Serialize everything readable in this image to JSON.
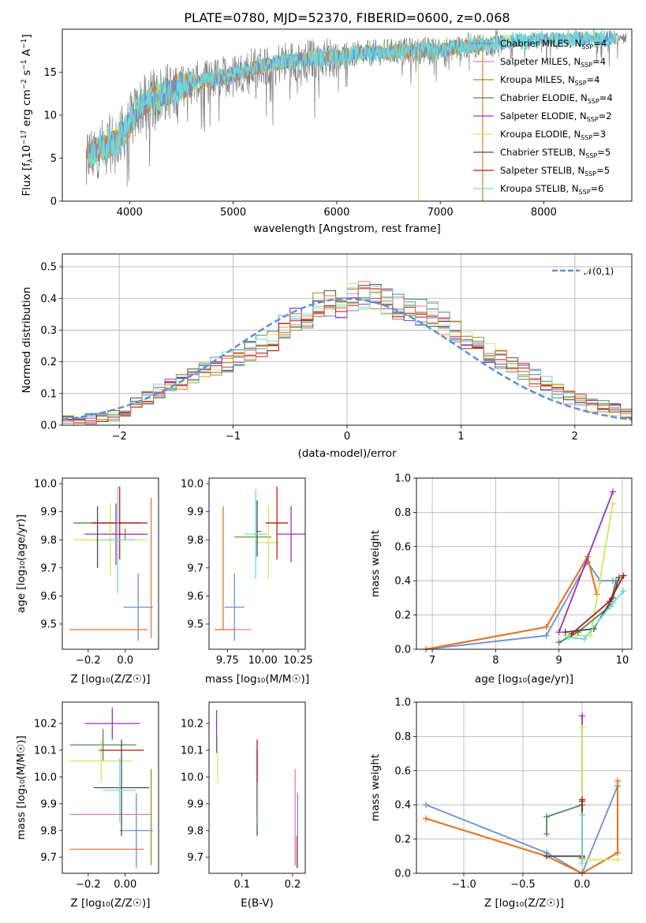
{
  "colors": {
    "Chabrier MILES": "#6a8ed8",
    "Salpeter MILES": "#e57bb0",
    "Kroupa MILES": "#9a8c2c",
    "Chabrier ELODIE": "#4e8a54",
    "Salpeter ELODIE": "#9a33b8",
    "Kroupa ELODIE": "#d0e85c",
    "Chabrier STELIB": "#4a4a4a",
    "Salpeter STELIB": "#b81818",
    "Kroupa STELIB": "#70d8d8",
    "orange": "#e0782e",
    "data": "#808080",
    "normal": "#5b8fd8"
  },
  "chart_data": [
    {
      "type": "line",
      "title": "PLATE=0780, MJD=52370, FIBERID=0600, z=0.068",
      "xlabel": "wavelength [Angstrom, rest frame]",
      "ylabel": "Flux [f_λ10^-17 erg cm^-2 s^-1 A^-1]",
      "xlim": [
        3350,
        8850
      ],
      "ylim": [
        0,
        20
      ],
      "xticks": [
        "4000",
        "5000",
        "6000",
        "7000",
        "8000"
      ],
      "yticks": [
        "0",
        "5",
        "10",
        "15"
      ],
      "legend_position": "right",
      "legend": [
        {
          "name": "Chabrier MILES",
          "nssp": "4"
        },
        {
          "name": "Salpeter MILES",
          "nssp": "4"
        },
        {
          "name": "Kroupa MILES",
          "nssp": "4"
        },
        {
          "name": "Chabrier ELODIE",
          "nssp": "4"
        },
        {
          "name": "Salpeter ELODIE",
          "nssp": "2"
        },
        {
          "name": "Kroupa ELODIE",
          "nssp": "3"
        },
        {
          "name": "Chabrier STELIB",
          "nssp": "5"
        },
        {
          "name": "Salpeter STELIB",
          "nssp": "5"
        },
        {
          "name": "Kroupa STELIB",
          "nssp": "6"
        }
      ],
      "continuum": {
        "x": [
          3580,
          3650,
          3800,
          3900,
          4000,
          4100,
          4300,
          4500,
          4800,
          5000,
          5300,
          5600,
          6000,
          6300,
          6600,
          7000,
          7400,
          7600,
          7900,
          8200,
          8800
        ],
        "y": [
          5.0,
          5.8,
          6.6,
          7.4,
          9.0,
          11.0,
          12.4,
          13.4,
          14.2,
          14.8,
          15.8,
          16.4,
          16.8,
          17.2,
          17.4,
          17.6,
          18.2,
          18.5,
          18.7,
          18.8,
          19.0
        ]
      }
    },
    {
      "type": "step",
      "xlabel": "(data-model)/error",
      "ylabel": "Normed distribution",
      "xlim": [
        -2.5,
        2.5
      ],
      "ylim": [
        0,
        0.54
      ],
      "xticks": [
        "−2",
        "−1",
        "0",
        "1",
        "2"
      ],
      "yticks": [
        "0.0",
        "0.1",
        "0.2",
        "0.3",
        "0.4",
        "0.5"
      ],
      "legend": "𝒩(0,1)",
      "legend_position": "upper right",
      "bin_edges_start": -2.5,
      "bin_width": 0.1,
      "histogram_envelope": [
        0.015,
        0.02,
        0.022,
        0.025,
        0.03,
        0.045,
        0.07,
        0.09,
        0.11,
        0.12,
        0.14,
        0.16,
        0.17,
        0.185,
        0.2,
        0.21,
        0.23,
        0.25,
        0.27,
        0.31,
        0.34,
        0.35,
        0.38,
        0.39,
        0.38,
        0.4,
        0.41,
        0.4,
        0.39,
        0.38,
        0.37,
        0.36,
        0.35,
        0.32,
        0.3,
        0.27,
        0.25,
        0.23,
        0.21,
        0.19,
        0.17,
        0.15,
        0.13,
        0.11,
        0.09,
        0.08,
        0.07,
        0.06,
        0.05,
        0.04
      ]
    },
    {
      "type": "scatter",
      "xlabel": "Z [log₁₀(Z/Z☉)]",
      "ylabel": "age  [log₁₀(age/yr)]",
      "xlim": [
        -0.34,
        0.18
      ],
      "ylim": [
        9.41,
        10.02
      ],
      "xticks": [
        "−0.2",
        "0.0"
      ],
      "yticks": [
        "9.5",
        "9.6",
        "9.7",
        "9.8",
        "9.9",
        "10.0"
      ],
      "points": [
        {
          "model": "Chabrier MILES",
          "x": 0.07,
          "xerr": 0.08,
          "y": 9.56,
          "yerr": 0.12
        },
        {
          "model": "Salpeter MILES",
          "x": 0.0,
          "xerr": 0.1,
          "y": 9.82,
          "yerr": 0.02
        },
        {
          "model": "Kroupa MILES",
          "x": 0.0,
          "xerr": 0.12,
          "y": 9.82,
          "yerr": 0.02
        },
        {
          "model": "Chabrier ELODIE",
          "x": -0.1,
          "xerr": 0.18,
          "y": 9.86,
          "yerr": 0.0
        },
        {
          "model": "Salpeter ELODIE",
          "x": -0.05,
          "xerr": 0.17,
          "y": 9.82,
          "yerr": 0.11
        },
        {
          "model": "Kroupa ELODIE",
          "x": -0.08,
          "xerr": 0.2,
          "y": 9.8,
          "yerr": 0.13
        },
        {
          "model": "Chabrier STELIB",
          "x": -0.15,
          "xerr": 0.0,
          "y": 9.81,
          "yerr": 0.11
        },
        {
          "model": "Salpeter STELIB",
          "x": -0.03,
          "xerr": 0.15,
          "y": 9.86,
          "yerr": 0.13
        },
        {
          "model": "Kroupa STELIB",
          "x": -0.04,
          "xerr": 0.09,
          "y": 9.8,
          "yerr": 0.19
        },
        {
          "model": "orange",
          "x": -0.09,
          "xerr": 0.21,
          "y": 9.48,
          "yerr": 0.0
        },
        {
          "model": "orange",
          "x": 0.14,
          "xerr": 0.0,
          "y": 9.7,
          "yerr": 0.25
        }
      ]
    },
    {
      "type": "scatter",
      "xlabel": "mass [log₁₀(M/M☉)]",
      "xlim": [
        9.62,
        10.3
      ],
      "ylim": [
        9.41,
        10.02
      ],
      "xticks": [
        "9.75",
        "10.00",
        "10.25"
      ],
      "yticks": [
        "9.5",
        "9.6",
        "9.7",
        "9.8",
        "9.9",
        "10.0"
      ],
      "points": [
        {
          "model": "Chabrier MILES",
          "x": 9.8,
          "xerr": 0.07,
          "y": 9.56,
          "yerr": 0.12
        },
        {
          "model": "Salpeter MILES",
          "x": 9.79,
          "xerr": 0.13,
          "y": 9.48,
          "yerr": 0.0
        },
        {
          "model": "Kroupa MILES",
          "x": 9.93,
          "xerr": 0.13,
          "y": 9.81,
          "yerr": 0.0
        },
        {
          "model": "Chabrier ELODIE",
          "x": 9.97,
          "xerr": 0.02,
          "y": 9.83,
          "yerr": 0.0
        },
        {
          "model": "Salpeter ELODIE",
          "x": 10.2,
          "xerr": 0.1,
          "y": 9.82,
          "yerr": 0.1
        },
        {
          "model": "Kroupa ELODIE",
          "x": 10.04,
          "xerr": 0.08,
          "y": 9.79,
          "yerr": 0.13
        },
        {
          "model": "Chabrier STELIB",
          "x": 9.96,
          "xerr": 0.0,
          "y": 9.84,
          "yerr": 0.1
        },
        {
          "model": "Salpeter STELIB",
          "x": 10.1,
          "xerr": 0.08,
          "y": 9.86,
          "yerr": 0.13
        },
        {
          "model": "Kroupa STELIB",
          "x": 9.95,
          "xerr": 0.08,
          "y": 9.82,
          "yerr": 0.16
        },
        {
          "model": "orange",
          "x": 9.72,
          "xerr": 0.0,
          "y": 9.7,
          "yerr": 0.22
        },
        {
          "model": "orange",
          "x": 9.73,
          "xerr": 0.07,
          "y": 9.48,
          "yerr": 0.0
        }
      ]
    },
    {
      "type": "line",
      "xlabel": "age  [log₁₀(age/yr)]",
      "ylabel": "mass weight",
      "xlim": [
        6.75,
        10.15
      ],
      "ylim": [
        0,
        1.0
      ],
      "xticks": [
        "7",
        "8",
        "9",
        "10"
      ],
      "yticks": [
        "0.0",
        "0.2",
        "0.4",
        "0.6",
        "0.8",
        "1.0"
      ],
      "series": [
        {
          "model": "Chabrier MILES",
          "x": [
            6.9,
            8.8,
            9.45,
            9.65,
            9.85
          ],
          "y": [
            0.0,
            0.08,
            0.51,
            0.4,
            0.4
          ]
        },
        {
          "model": "orange",
          "x": [
            6.9,
            8.8,
            9.45,
            9.6
          ],
          "y": [
            0.0,
            0.13,
            0.54,
            0.32
          ]
        },
        {
          "model": "Salpeter ELODIE",
          "x": [
            9.0,
            9.85
          ],
          "y": [
            0.1,
            0.92
          ]
        },
        {
          "model": "Kroupa ELODIE",
          "x": [
            9.1,
            9.5,
            9.85
          ],
          "y": [
            0.08,
            0.08,
            0.85
          ]
        },
        {
          "model": "Chabrier ELODIE",
          "x": [
            9.0,
            9.3,
            9.8,
            9.9
          ],
          "y": [
            0.04,
            0.1,
            0.25,
            0.4
          ]
        },
        {
          "model": "Chabrier STELIB",
          "x": [
            9.1,
            9.55,
            9.85,
            9.95
          ],
          "y": [
            0.1,
            0.12,
            0.3,
            0.42
          ]
        },
        {
          "model": "Salpeter STELIB",
          "x": [
            9.2,
            9.8,
            10.02
          ],
          "y": [
            0.09,
            0.28,
            0.43
          ]
        },
        {
          "model": "Kroupa STELIB",
          "x": [
            9.15,
            9.4,
            9.85,
            10.02
          ],
          "y": [
            0.07,
            0.06,
            0.27,
            0.34
          ]
        }
      ]
    },
    {
      "type": "scatter",
      "xlabel": "Z [log₁₀(Z/Z☉)]",
      "ylabel": "mass [log₁₀(M/M☉)]",
      "xlim": [
        -0.34,
        0.18
      ],
      "ylim": [
        9.64,
        10.28
      ],
      "xticks": [
        "−0.2",
        "0.00"
      ],
      "yticks": [
        "9.7",
        "9.8",
        "9.9",
        "10.0",
        "10.1",
        "10.2"
      ],
      "points": [
        {
          "model": "Chabrier MILES",
          "x": 0.06,
          "xerr": 0.09,
          "y": 9.8,
          "yerr": 0.14
        },
        {
          "model": "Salpeter MILES",
          "x": -0.08,
          "xerr": 0.22,
          "y": 9.86,
          "yerr": 0.0
        },
        {
          "model": "Kroupa MILES",
          "x": 0.14,
          "xerr": 0.0,
          "y": 9.85,
          "yerr": 0.18
        },
        {
          "model": "Chabrier ELODIE",
          "x": -0.12,
          "xerr": 0.18,
          "y": 10.12,
          "yerr": 0.06
        },
        {
          "model": "Salpeter ELODIE",
          "x": -0.07,
          "xerr": 0.15,
          "y": 10.2,
          "yerr": 0.06
        },
        {
          "model": "Kroupa ELODIE",
          "x": -0.13,
          "xerr": 0.17,
          "y": 10.06,
          "yerr": 0.08
        },
        {
          "model": "Chabrier STELIB",
          "x": -0.02,
          "xerr": 0.15,
          "y": 9.96,
          "yerr": 0.18
        },
        {
          "model": "Salpeter STELIB",
          "x": -0.02,
          "xerr": 0.12,
          "y": 10.1,
          "yerr": 0.0
        },
        {
          "model": "Kroupa STELIB",
          "x": -0.03,
          "xerr": 0.09,
          "y": 9.95,
          "yerr": 0.12
        },
        {
          "model": "orange",
          "x": -0.1,
          "xerr": 0.2,
          "y": 9.73,
          "yerr": 0.0
        }
      ]
    },
    {
      "type": "scatter",
      "xlabel": "E(B-V)",
      "xlim": [
        0.035,
        0.225
      ],
      "ylim": [
        9.64,
        10.28
      ],
      "xticks": [
        "0.1",
        "0.2"
      ],
      "yticks": [
        "9.7",
        "9.8",
        "9.9",
        "10.0",
        "10.1",
        "10.2"
      ],
      "points": [
        {
          "model": "Salpeter ELODIE",
          "x": 0.05,
          "xerr": 0.0,
          "y": 10.17,
          "yerr": 0.08
        },
        {
          "model": "Kroupa ELODIE",
          "x": 0.052,
          "xerr": 0.0,
          "y": 10.06,
          "yerr": 0.08
        },
        {
          "model": "Chabrier STELIB",
          "x": 0.13,
          "xerr": 0.0,
          "y": 9.94,
          "yerr": 0.16
        },
        {
          "model": "Salpeter STELIB",
          "x": 0.13,
          "xerr": 0.0,
          "y": 10.0,
          "yerr": 0.14
        },
        {
          "model": "Kroupa STELIB",
          "x": 0.131,
          "xerr": 0.0,
          "y": 9.9,
          "yerr": 0.08
        },
        {
          "model": "Salpeter MILES",
          "x": 0.205,
          "xerr": 0.0,
          "y": 9.85,
          "yerr": 0.18
        },
        {
          "model": "Chabrier MILES",
          "x": 0.21,
          "xerr": 0.0,
          "y": 9.8,
          "yerr": 0.14
        },
        {
          "model": "orange",
          "x": 0.208,
          "xerr": 0.0,
          "y": 9.72,
          "yerr": 0.06
        }
      ]
    },
    {
      "type": "line",
      "xlabel": "Z [log₁₀(Z/Z☉)]",
      "ylabel": "mass weight",
      "xlim": [
        -1.4,
        0.42
      ],
      "ylim": [
        0,
        1.0
      ],
      "xticks": [
        "−1.0",
        "−0.5",
        "0.0"
      ],
      "yticks": [
        "0.0",
        "0.2",
        "0.4",
        "0.6",
        "0.8",
        "1.0"
      ],
      "series": [
        {
          "model": "Chabrier MILES",
          "x": [
            -1.32,
            -0.3,
            0.0,
            0.3
          ],
          "y": [
            0.4,
            0.12,
            0.0,
            0.51
          ]
        },
        {
          "model": "orange",
          "x": [
            -1.32,
            -0.3,
            0.0,
            0.3,
            0.3
          ],
          "y": [
            0.32,
            0.1,
            0.0,
            0.12,
            0.54
          ]
        },
        {
          "model": "Salpeter ELODIE",
          "x": [
            0.0,
            0.0
          ],
          "y": [
            0.92,
            0.1
          ]
        },
        {
          "model": "Kroupa ELODIE",
          "x": [
            0.0,
            0.0,
            0.3
          ],
          "y": [
            0.85,
            0.08,
            0.08
          ]
        },
        {
          "model": "Chabrier ELODIE",
          "x": [
            -0.3,
            -0.3,
            0.0,
            0.0
          ],
          "y": [
            0.23,
            0.33,
            0.4,
            0.1
          ]
        },
        {
          "model": "Chabrier STELIB",
          "x": [
            -0.3,
            0.0,
            0.0
          ],
          "y": [
            0.1,
            0.1,
            0.42
          ]
        },
        {
          "model": "Salpeter STELIB",
          "x": [
            0.0,
            0.0
          ],
          "y": [
            0.43,
            0.09
          ]
        },
        {
          "model": "Kroupa STELIB",
          "x": [
            0.0,
            0.0
          ],
          "y": [
            0.34,
            0.06
          ]
        }
      ]
    }
  ]
}
